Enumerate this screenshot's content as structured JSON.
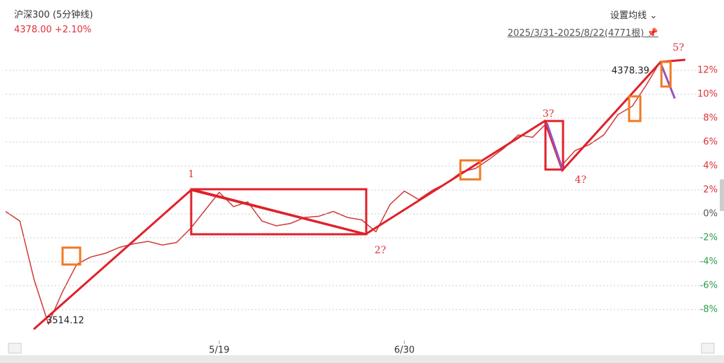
{
  "header": {
    "title": "沪深300 (5分钟线)",
    "price": "4378.00",
    "change": "+2.10%",
    "settings": "设置均线",
    "range": "2025/3/31-2025/8/22(4771根)"
  },
  "chart_data": {
    "type": "line",
    "values": [
      0.2,
      -0.6,
      -5.5,
      -9.2,
      -6.5,
      -4.2,
      -3.6,
      -3.3,
      -2.8,
      -2.5,
      -2.3,
      -2.6,
      -2.4,
      -1.2,
      0.3,
      1.8,
      0.6,
      1.0,
      -0.6,
      -1.0,
      -0.8,
      -0.3,
      -0.2,
      0.2,
      -0.3,
      -0.5,
      -1.5,
      0.8,
      1.9,
      1.2,
      2.0,
      2.6,
      3.5,
      3.8,
      4.6,
      5.5,
      6.6,
      6.4,
      7.6,
      4.0,
      5.3,
      5.8,
      6.6,
      8.3,
      9.0,
      10.8,
      12.8
    ],
    "color": "#d03a3a",
    "up_color": "#e0303a",
    "down_color": "#2a9d4a",
    "flat_color": "#555555",
    "ylim": [
      -10.5,
      13
    ],
    "yticks": [
      {
        "value": 12,
        "label": "12%"
      },
      {
        "value": 10,
        "label": "10%"
      },
      {
        "value": 8,
        "label": "8%"
      },
      {
        "value": 6,
        "label": "6%"
      },
      {
        "value": 4,
        "label": "4%"
      },
      {
        "value": 2,
        "label": "2%"
      },
      {
        "value": 0,
        "label": "0%"
      },
      {
        "value": -2,
        "label": "-2%"
      },
      {
        "value": -4,
        "label": "-4%"
      },
      {
        "value": -6,
        "label": "-6%"
      },
      {
        "value": -8,
        "label": "-8%"
      }
    ],
    "xticks": [
      {
        "value": 15,
        "label": "5/19"
      },
      {
        "value": 28,
        "label": "6/30"
      }
    ],
    "grid": true,
    "annotations": {
      "high": "4378.39",
      "low": "3514.12",
      "wave1": "1",
      "wave2": "2?",
      "wave3": "3?",
      "wave4": "4?",
      "wave5": "5?"
    }
  }
}
